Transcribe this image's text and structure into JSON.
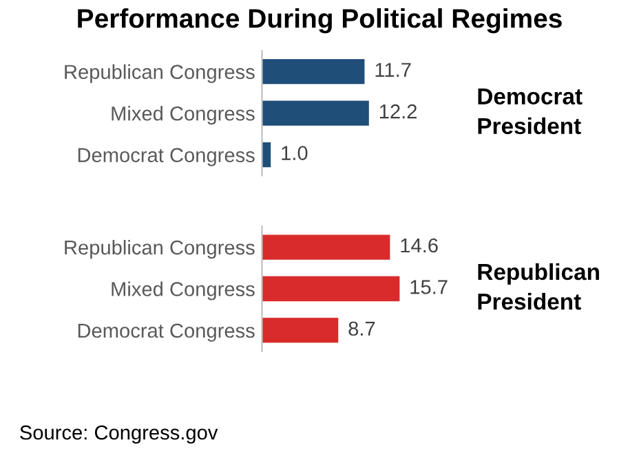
{
  "chart_data": [
    {
      "type": "bar",
      "orientation": "horizontal",
      "title": "Performance During Political Regimes",
      "categories": [
        "Republican Congress",
        "Mixed Congress",
        "Democrat Congress"
      ],
      "values": [
        11.7,
        12.2,
        1.0
      ],
      "value_labels": [
        "11.7",
        "12.2",
        "1.0"
      ],
      "colors": [
        "#1f4e79",
        "#1f4e79",
        "#1f4e79"
      ],
      "tick_labels": "y",
      "annotations": [
        "Democrat\nPresident"
      ]
    },
    {
      "type": "bar",
      "orientation": "horizontal",
      "categories": [
        "Republican Congress",
        "Mixed Congress",
        "Democrat Congress"
      ],
      "values": [
        14.6,
        15.7,
        8.7
      ],
      "value_labels": [
        "14.6",
        "15.7",
        "8.7"
      ],
      "colors": [
        "#d92b2b",
        "#d92b2b",
        "#d92b2b"
      ],
      "tick_labels": "y",
      "annotations": [
        "Republican\nPresident",
        "Source: Congress.gov"
      ]
    }
  ]
}
